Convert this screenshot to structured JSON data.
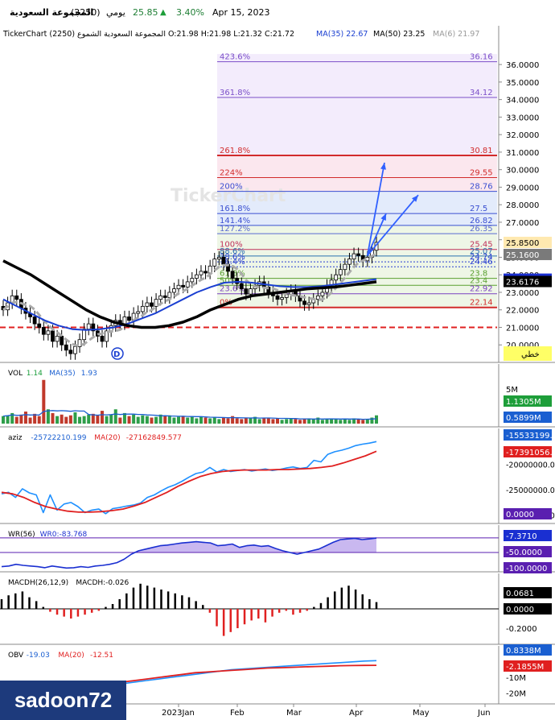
{
  "header": {
    "name": "المجموعة السعودية",
    "code": "(2250)",
    "period": "يومي",
    "price": "25.85",
    "change_pct": "3.40%",
    "date": "Apr 15, 2023"
  },
  "legend": {
    "title": "TickerChart المجموعة السعودية الشموع (2250) O:21.98 H:21.98 L:21.32 C:21.72",
    "ma35": "MA(35) 22.67",
    "ma50": "MA(50) 23.25",
    "ma6": "MA(6) 21.97",
    "watermark": "TickerChart"
  },
  "watermark_text": "TickerChart",
  "colors": {
    "up": "#2e8b57",
    "down": "#c0392b",
    "ma35": "#1a3fd1",
    "ma50": "#000000",
    "fib_band": "#ece4fb",
    "fib_purple": "#7b4fc9",
    "fib_red": "#d22b2b",
    "fib_blue": "#3a4fd1",
    "support_line": "#e02020",
    "arrow": "#3060ff"
  },
  "chart_data": [
    {
      "type": "candlestick",
      "panel": "price",
      "x_axis": [
        "2023Jan",
        "Feb",
        "Mar",
        "Apr",
        "May",
        "Jun"
      ],
      "y_ticks": [
        "36.0000",
        "35.0000",
        "34.0000",
        "33.0000",
        "32.0000",
        "31.0000",
        "30.0000",
        "29.0000",
        "28.0000",
        "27.0000",
        "26.0000",
        "25.0000",
        "24.0000",
        "23.0000",
        "22.0000",
        "21.0000",
        "20.0000"
      ],
      "ylim": [
        19.0,
        37.2
      ],
      "close_series": [
        22.0,
        22.4,
        22.8,
        22.6,
        22.1,
        21.8,
        21.6,
        21.2,
        21.0,
        20.6,
        20.8,
        20.2,
        20.5,
        20.0,
        19.7,
        19.5,
        19.9,
        20.3,
        20.9,
        21.2,
        20.8,
        20.5,
        20.2,
        20.8,
        21.1,
        21.4,
        21.2,
        21.6,
        21.4,
        21.8,
        21.9,
        22.2,
        22.4,
        22.2,
        22.6,
        22.8,
        22.7,
        23.0,
        23.2,
        23.4,
        23.3,
        23.6,
        23.8,
        24.0,
        24.2,
        24.1,
        24.5,
        24.9,
        25.0,
        24.6,
        24.2,
        23.8,
        23.5,
        23.2,
        22.9,
        23.2,
        23.4,
        23.6,
        23.3,
        23.0,
        22.8,
        22.6,
        22.7,
        22.9,
        23.1,
        22.8,
        22.5,
        22.3,
        22.4,
        22.6,
        22.8,
        23.0,
        23.4,
        23.7,
        24.0,
        24.3,
        24.6,
        24.9,
        25.2,
        25.1,
        24.8,
        25.0,
        25.4,
        25.85
      ],
      "ma35_series": [
        22.6,
        22.2,
        21.8,
        21.4,
        21.1,
        20.9,
        20.85,
        20.9,
        21.0,
        21.2,
        21.5,
        21.8,
        22.2,
        22.6,
        23.0,
        23.3,
        23.55,
        23.6,
        23.55,
        23.45,
        23.35,
        23.3,
        23.3,
        23.35,
        23.45,
        23.55,
        23.65,
        23.75
      ],
      "ma50_series": [
        24.8,
        24.4,
        24.0,
        23.5,
        23.0,
        22.5,
        22.0,
        21.6,
        21.3,
        21.1,
        21.0,
        21.0,
        21.1,
        21.3,
        21.6,
        22.0,
        22.3,
        22.6,
        22.8,
        22.9,
        23.0,
        23.1,
        23.2,
        23.25,
        23.3,
        23.4,
        23.5,
        23.6
      ],
      "fib_levels": [
        {
          "label": "423.6%",
          "value": "36.16",
          "y": 36.16
        },
        {
          "label": "361.8%",
          "value": "34.12",
          "y": 34.12
        },
        {
          "label": "261.8%",
          "value": "30.81",
          "y": 30.81
        },
        {
          "label": "224%",
          "value": "29.55",
          "y": 29.55
        },
        {
          "label": "200%",
          "value": "28.76",
          "y": 28.76
        },
        {
          "label": "161.8%",
          "value": "27.5",
          "y": 27.5
        },
        {
          "label": "141.4%",
          "value": "26.82",
          "y": 26.82
        },
        {
          "label": "127.2%",
          "value": "26.35",
          "y": 26.35
        },
        {
          "label": "100%",
          "value": "25.45",
          "y": 25.45
        },
        {
          "label": "88.6%",
          "value": "25.07",
          "y": 25.07
        },
        {
          "label": "78.6%",
          "value": "24.74",
          "y": 24.74
        },
        {
          "label": "76.4%",
          "value": "24.46",
          "y": 24.46
        },
        {
          "label": "61.8%",
          "value": "23.8",
          "y": 23.8
        },
        {
          "label": "50%",
          "value": "23.4",
          "y": 23.4
        },
        {
          "label": "23.6%",
          "value": "22.92",
          "y": 22.92
        },
        {
          "label": "0%",
          "value": "22.14",
          "y": 22.14
        }
      ],
      "support_level": 21.0,
      "right_labels": [
        {
          "text": "25.8500",
          "y": 25.85,
          "bg": "#ffe9b0",
          "fg": "#000"
        },
        {
          "text": "25.1600",
          "y": 25.16,
          "bg": "#7a7a7a",
          "fg": "#fff"
        },
        {
          "text": "23.7514",
          "y": 23.7514,
          "bg": "#1a2fd1",
          "fg": "#fff"
        },
        {
          "text": "23.6176",
          "y": 23.6176,
          "bg": "#000000",
          "fg": "#fff"
        }
      ],
      "trend_label": "خطي",
      "marker_label": "D"
    },
    {
      "type": "bar",
      "panel": "volume",
      "title": "VOL",
      "legend": [
        "1.14",
        "MA(35)",
        "1.93"
      ],
      "y_ticks": [
        "5M"
      ],
      "right_labels": [
        {
          "text": "1.1305M",
          "bg": "#1e9e3a",
          "fg": "#fff"
        },
        {
          "text": "0.5899M",
          "bg": "#1a5fd1",
          "fg": "#fff"
        }
      ],
      "values": [
        1.0,
        1.1,
        1.4,
        0.9,
        1.2,
        1.6,
        0.8,
        1.3,
        1.0,
        5.8,
        1.9,
        1.4,
        1.0,
        1.2,
        0.9,
        1.1,
        1.5,
        0.9,
        1.0,
        1.2,
        1.3,
        1.1,
        1.7,
        1.0,
        1.2,
        1.9,
        0.8,
        1.4,
        1.0,
        1.2,
        0.9,
        1.1,
        1.0,
        0.8,
        0.9,
        1.2,
        1.0,
        1.1,
        0.8,
        0.9,
        1.0,
        0.8,
        0.9,
        0.7,
        0.9,
        0.8,
        0.7,
        0.9,
        0.6,
        0.8,
        0.7,
        1.0,
        0.7,
        0.6,
        0.8,
        0.7,
        0.9,
        0.6,
        0.7,
        0.8,
        0.6,
        0.7,
        0.5,
        0.6,
        0.7,
        0.6,
        0.5,
        0.6,
        0.7,
        0.6,
        0.8,
        0.5,
        0.6,
        0.7,
        0.6,
        0.5,
        0.6,
        0.5,
        0.7,
        0.6,
        0.5,
        0.6,
        0.8,
        1.1
      ]
    },
    {
      "type": "line",
      "panel": "aziz",
      "title": "aziz",
      "legend": [
        "-25722210.199",
        "MA(20)",
        "-27162849.577"
      ],
      "y_ticks": [
        "-20000000.0",
        "-25000000.0",
        "-30000000.0"
      ],
      "right_labels": [
        {
          "text": "-15533199.6",
          "bg": "#1a5fd1",
          "fg": "#fff"
        },
        {
          "text": "-17391056.3",
          "bg": "#e02020",
          "fg": "#fff"
        },
        {
          "text": "0.0000",
          "bg": "#5a1fb0",
          "fg": "#fff"
        }
      ],
      "series": [
        {
          "name": "aziz",
          "values": [
            -25.8,
            -25.5,
            -26.5,
            -24.8,
            -25.6,
            -26.0,
            -29.5,
            -26.0,
            -29.0,
            -27.8,
            -27.5,
            -28.3,
            -29.5,
            -29.0,
            -28.8,
            -29.7,
            -28.7,
            -28.5,
            -28.2,
            -28.0,
            -27.6,
            -26.5,
            -26.0,
            -25.2,
            -24.5,
            -24.0,
            -23.3,
            -22.5,
            -21.8,
            -21.5,
            -20.6,
            -21.5,
            -21.0,
            -21.4,
            -21.2,
            -21.0,
            -21.3,
            -21.1,
            -20.9,
            -21.2,
            -21.0,
            -20.7,
            -20.5,
            -20.8,
            -20.6,
            -19.2,
            -19.5,
            -18.0,
            -17.5,
            -17.2,
            -16.8,
            -16.3,
            -16.0,
            -15.8,
            -15.5
          ]
        },
        {
          "name": "MA(20)",
          "values": [
            -25.5,
            -25.8,
            -26.5,
            -27.5,
            -28.3,
            -28.8,
            -29.2,
            -29.4,
            -29.4,
            -29.3,
            -29.1,
            -28.8,
            -28.2,
            -27.5,
            -26.5,
            -25.5,
            -24.3,
            -23.3,
            -22.4,
            -21.8,
            -21.4,
            -21.2,
            -21.1,
            -21.1,
            -21.1,
            -21.0,
            -21.0,
            -20.9,
            -20.8,
            -20.6,
            -20.3,
            -19.7,
            -19.0,
            -18.3,
            -17.4
          ]
        }
      ]
    },
    {
      "type": "line",
      "panel": "wr",
      "title": "WR(56)",
      "legend": [
        "WR0:-83.768"
      ],
      "y_ticks": [],
      "right_labels": [
        {
          "text": "-7.3710",
          "bg": "#1a2fd1",
          "fg": "#fff"
        },
        {
          "text": "-50.0000",
          "bg": "#5a1fb0",
          "fg": "#fff"
        },
        {
          "text": "-100.0000",
          "bg": "#5a1fb0",
          "fg": "#fff"
        }
      ],
      "values": [
        -92,
        -90,
        -85,
        -88,
        -90,
        -92,
        -95,
        -90,
        -93,
        -96,
        -95,
        -92,
        -94,
        -90,
        -88,
        -85,
        -80,
        -70,
        -55,
        -45,
        -40,
        -35,
        -30,
        -28,
        -25,
        -22,
        -20,
        -18,
        -20,
        -22,
        -30,
        -28,
        -25,
        -35,
        -30,
        -28,
        -32,
        -30,
        -38,
        -45,
        -50,
        -55,
        -50,
        -45,
        -40,
        -30,
        -20,
        -12,
        -10,
        -8,
        -12,
        -10,
        -7.4
      ]
    },
    {
      "type": "bar",
      "panel": "macd",
      "title": "MACDH(26,12,9)",
      "legend": [
        "MACDH:-0.026"
      ],
      "y_ticks": [
        "-0.2000"
      ],
      "right_labels": [
        {
          "text": "0.0681",
          "bg": "#000000",
          "fg": "#fff"
        },
        {
          "text": "0.0000",
          "bg": "#000000",
          "fg": "#fff"
        }
      ],
      "values": [
        0.1,
        0.14,
        0.16,
        0.18,
        0.12,
        0.08,
        0.02,
        -0.03,
        -0.06,
        -0.08,
        -0.1,
        -0.08,
        -0.06,
        -0.04,
        -0.02,
        0.02,
        0.05,
        0.1,
        0.16,
        0.22,
        0.26,
        0.24,
        0.22,
        0.2,
        0.18,
        0.16,
        0.14,
        0.12,
        0.08,
        0.04,
        -0.04,
        -0.18,
        -0.28,
        -0.24,
        -0.2,
        -0.16,
        -0.12,
        -0.1,
        -0.14,
        -0.08,
        -0.04,
        -0.02,
        -0.06,
        -0.04,
        -0.02,
        0.02,
        0.06,
        0.12,
        0.18,
        0.22,
        0.24,
        0.2,
        0.15,
        0.1,
        0.07
      ]
    },
    {
      "type": "line",
      "panel": "obv",
      "title": "OBV",
      "legend": [
        "-19.03",
        "MA(20)",
        "-12.51"
      ],
      "y_ticks": [
        "-10M",
        "-20M"
      ],
      "right_labels": [
        {
          "text": "0.8338M",
          "bg": "#1a5fd1",
          "fg": "#fff"
        },
        {
          "text": "-2.1855M",
          "bg": "#e02020",
          "fg": "#fff"
        }
      ],
      "series": [
        {
          "name": "OBV",
          "values": [
            -18,
            -20,
            -23,
            -26,
            -22,
            -24,
            -21,
            -19,
            -18,
            -16,
            -14,
            -13,
            -12,
            -11,
            -10,
            -9,
            -8,
            -7,
            -6,
            -5,
            -4.5,
            -4,
            -3.5,
            -3,
            -2.5,
            -2,
            -1.5,
            -1,
            -0.5,
            0,
            0.5,
            0.8
          ]
        },
        {
          "name": "MA(20)",
          "values": [
            -22,
            -23,
            -24,
            -24,
            -23,
            -21,
            -19,
            -17,
            -15,
            -14,
            -13,
            -12,
            -11,
            -10,
            -9,
            -8,
            -7,
            -6.5,
            -6,
            -5.5,
            -5,
            -4.5,
            -4,
            -3.8,
            -3.5,
            -3.2,
            -3,
            -2.8,
            -2.5,
            -2.4,
            -2.3,
            -2.2
          ]
        }
      ]
    }
  ],
  "user": "sadoon72"
}
